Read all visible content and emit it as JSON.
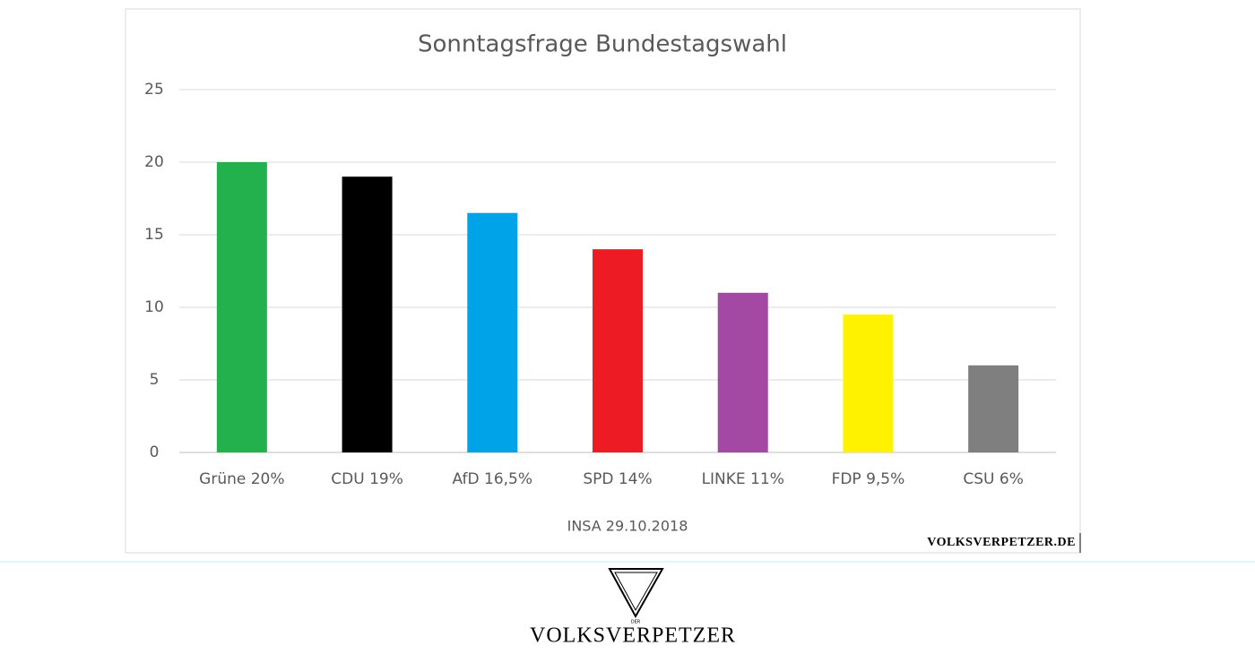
{
  "chart_data": {
    "type": "bar",
    "title": "Sonntagsfrage Bundestagswahl",
    "categories": [
      "Grüne 20%",
      "CDU 19%",
      "AfD 16,5%",
      "SPD 14%",
      "LINKE 11%",
      "FDP 9,5%",
      "CSU 6%"
    ],
    "values": [
      20,
      19,
      16.5,
      14,
      11,
      9.5,
      6
    ],
    "colors": [
      "#22b14c",
      "#000000",
      "#00a2e8",
      "#ed1c24",
      "#a349a4",
      "#fff200",
      "#7f7f7f"
    ],
    "ylim": [
      0,
      25
    ],
    "yticks": [
      0,
      5,
      10,
      15,
      20,
      25
    ],
    "grid": true,
    "x_label": "INSA 29.10.2018"
  },
  "watermark": "VOLKSVERPETZER.DE",
  "logo": {
    "small": "DER",
    "name": "VOLKSVERPETZER"
  }
}
